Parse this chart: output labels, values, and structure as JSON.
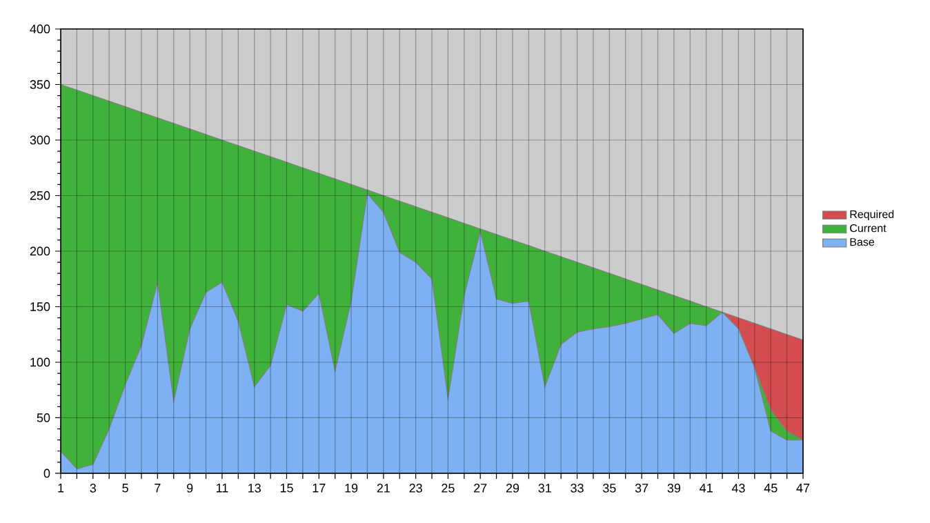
{
  "chart_data": {
    "type": "area",
    "x": [
      1,
      2,
      3,
      4,
      5,
      6,
      7,
      8,
      9,
      10,
      11,
      12,
      13,
      14,
      15,
      16,
      17,
      18,
      19,
      20,
      21,
      22,
      23,
      24,
      25,
      26,
      27,
      28,
      29,
      30,
      31,
      32,
      33,
      34,
      35,
      36,
      37,
      38,
      39,
      40,
      41,
      42,
      43,
      44,
      45,
      46,
      47
    ],
    "series": [
      {
        "name": "Required",
        "color": "#d24c50",
        "values": [
          null,
          null,
          null,
          null,
          null,
          null,
          null,
          null,
          null,
          null,
          null,
          null,
          null,
          null,
          null,
          null,
          null,
          null,
          null,
          null,
          null,
          null,
          null,
          null,
          null,
          null,
          null,
          null,
          null,
          null,
          null,
          null,
          null,
          null,
          null,
          null,
          null,
          null,
          null,
          null,
          null,
          145,
          140,
          135,
          130,
          125,
          120
        ]
      },
      {
        "name": "Current",
        "color": "#40b23c",
        "values": [
          350,
          345,
          340,
          335,
          330,
          325,
          320,
          315,
          310,
          305,
          300,
          295,
          290,
          285,
          280,
          275,
          270,
          265,
          260,
          255,
          250,
          245,
          240,
          235,
          230,
          225,
          220,
          215,
          210,
          205,
          200,
          195,
          190,
          185,
          180,
          175,
          170,
          165,
          160,
          155,
          150,
          145,
          130,
          95,
          57,
          38,
          30
        ]
      },
      {
        "name": "Base",
        "color": "#7eb1f3",
        "values": [
          20,
          4,
          8,
          40,
          80,
          115,
          172,
          65,
          130,
          163,
          172,
          137,
          78,
          97,
          152,
          146,
          162,
          92,
          155,
          252,
          235,
          199,
          190,
          175,
          67,
          160,
          218,
          157,
          153,
          155,
          78,
          116,
          127,
          130,
          132,
          135,
          139,
          143,
          126,
          135,
          133,
          145,
          130,
          95,
          38,
          30,
          30
        ]
      }
    ],
    "xlim": [
      1,
      47
    ],
    "ylim": [
      0,
      400
    ],
    "xticks": [
      1,
      {
        "value": 2,
        "label": null
      },
      3,
      {
        "value": 4,
        "label": null
      },
      5,
      {
        "value": 6,
        "label": null
      },
      7,
      {
        "value": 8,
        "label": null
      },
      9,
      {
        "value": 10,
        "label": null
      },
      11,
      {
        "value": 12,
        "label": null
      },
      13,
      {
        "value": 14,
        "label": null
      },
      15,
      {
        "value": 16,
        "label": null
      },
      17,
      {
        "value": 18,
        "label": null
      },
      19,
      {
        "value": 20,
        "label": null
      },
      21,
      {
        "value": 22,
        "label": null
      },
      23,
      {
        "value": 24,
        "label": null
      },
      25,
      {
        "value": 26,
        "label": null
      },
      27,
      {
        "value": 28,
        "label": null
      },
      29,
      {
        "value": 30,
        "label": null
      },
      31,
      {
        "value": 32,
        "label": null
      },
      33,
      {
        "value": 34,
        "label": null
      },
      35,
      {
        "value": 36,
        "label": null
      },
      37,
      {
        "value": 38,
        "label": null
      },
      39,
      {
        "value": 40,
        "label": null
      },
      41,
      {
        "value": 42,
        "label": null
      },
      43,
      {
        "value": 44,
        "label": null
      },
      45,
      {
        "value": 46,
        "label": null
      },
      47
    ],
    "yticks": [
      0,
      50,
      100,
      150,
      200,
      250,
      300,
      350,
      400
    ],
    "grid": true,
    "legend": "right"
  }
}
